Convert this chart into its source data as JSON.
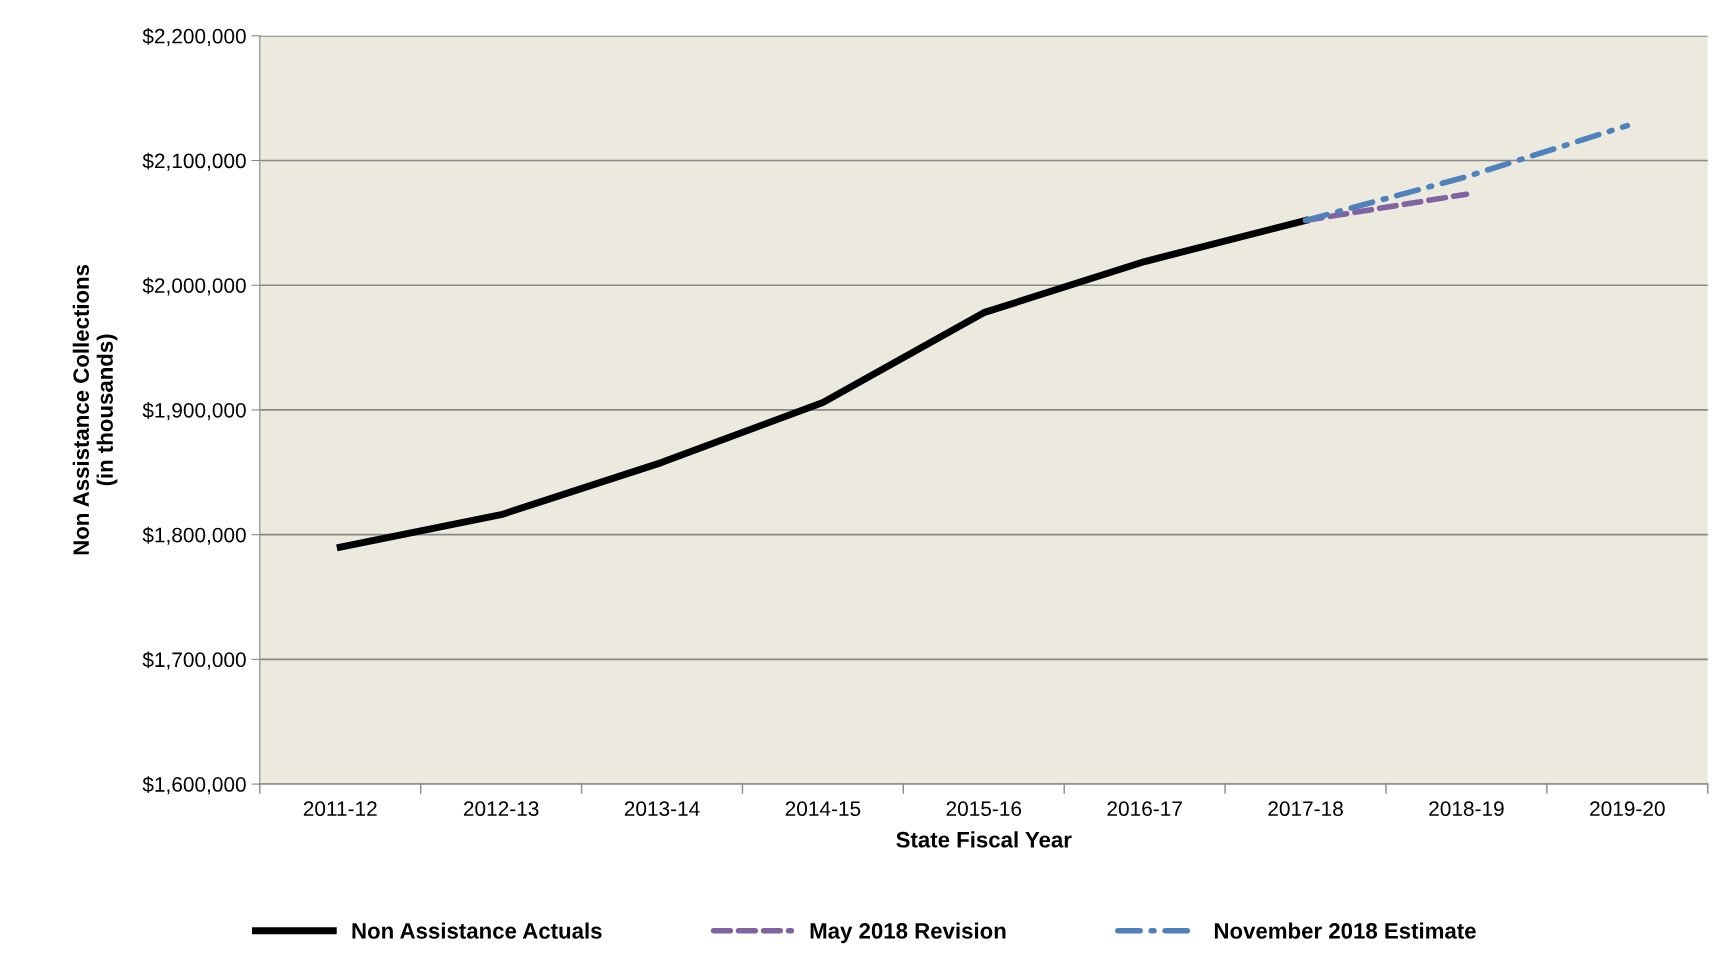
{
  "chart_data": {
    "type": "line",
    "xlabel": "State Fiscal Year",
    "ylabel": "Non Assistance Collections\n(in thousands)",
    "categories": [
      "2011-12",
      "2012-13",
      "2013-14",
      "2014-15",
      "2015-16",
      "2016-17",
      "2017-18",
      "2018-19",
      "2019-20"
    ],
    "series": [
      {
        "name": "Non Assistance Actuals",
        "color": "#000000",
        "line_style": "solid",
        "values": [
          1790000,
          1816000,
          1858000,
          1906000,
          1978000,
          2019000,
          2052000,
          null,
          null
        ]
      },
      {
        "name": "May 2018 Revision",
        "color": "#8064a2",
        "line_style": "dashed",
        "values": [
          null,
          null,
          null,
          null,
          null,
          null,
          2052000,
          2073000,
          null
        ]
      },
      {
        "name": "November 2018 Estimate",
        "color": "#4f81bd",
        "line_style": "dashdot",
        "values": [
          null,
          null,
          null,
          null,
          null,
          null,
          2052000,
          2087000,
          2128000
        ]
      }
    ],
    "ylim": [
      1600000,
      2200000
    ],
    "yticks": [
      {
        "value": 1600000,
        "label": "$1,600,000"
      },
      {
        "value": 1700000,
        "label": "$1,700,000"
      },
      {
        "value": 1800000,
        "label": "$1,800,000"
      },
      {
        "value": 1900000,
        "label": "$1,900,000"
      },
      {
        "value": 2000000,
        "label": "$2,000,000"
      },
      {
        "value": 2100000,
        "label": "$2,100,000"
      },
      {
        "value": 2200000,
        "label": "$2,200,000"
      }
    ],
    "grid": "y",
    "legend": "bottom",
    "marker": "none"
  }
}
